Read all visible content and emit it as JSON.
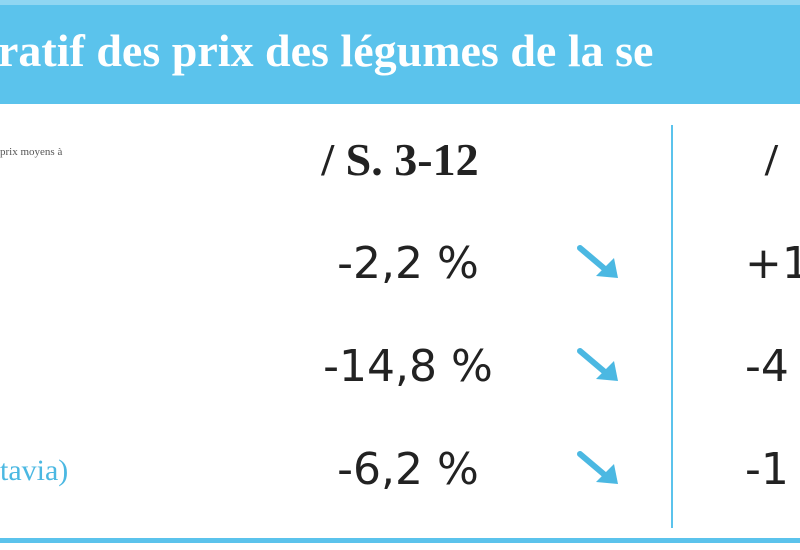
{
  "header": {
    "title": "ratif des prix des légumes de la se",
    "note": "prix moyens à"
  },
  "table": {
    "columns": [
      "/ S. 3-12",
      "/"
    ],
    "rows": [
      {
        "label": null,
        "values": [
          "-2,2 %",
          "+1"
        ]
      },
      {
        "label": null,
        "values": [
          "-14,8 %",
          "-4"
        ]
      },
      {
        "label": "tavia)",
        "values": [
          "-6,2 %",
          "-1"
        ]
      }
    ]
  }
}
